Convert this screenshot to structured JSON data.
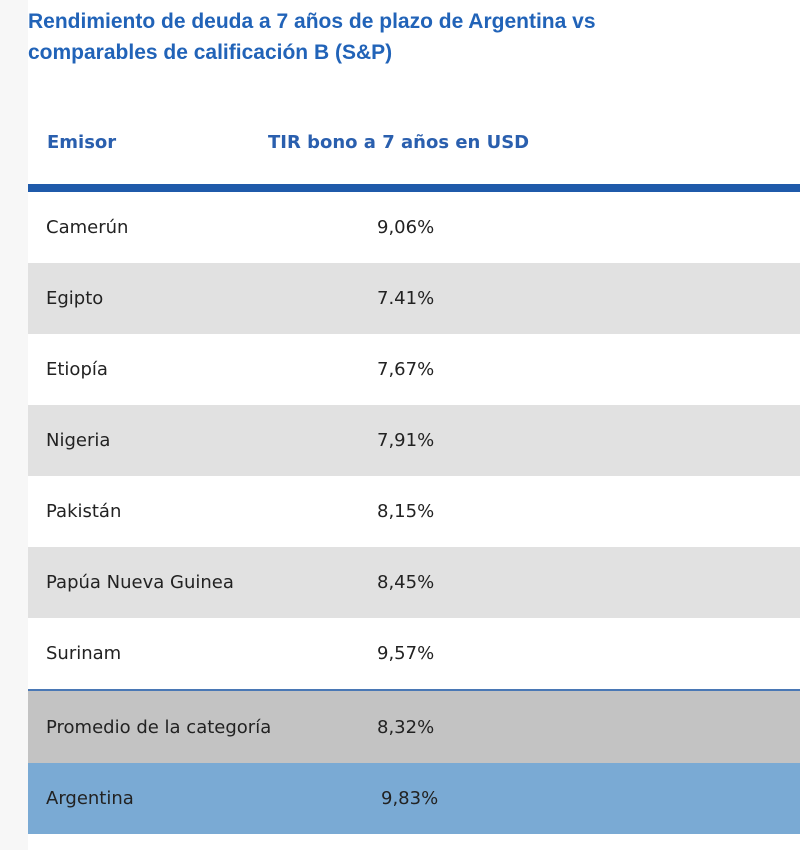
{
  "title": "Rendimiento de deuda a 7 años de plazo de Argentina vs comparables de calificación B (S&P)",
  "colors": {
    "title": "#2163b8",
    "header_text": "#2a5fae",
    "header_rule": "#1f5aaa",
    "row_alt": "#e1e1e1",
    "average_row": "#c3c3c3",
    "argentina_row": "#7aaad4"
  },
  "chart_data": {
    "type": "table",
    "title": "Rendimiento de deuda a 7 años de plazo de Argentina vs comparables de calificación B (S&P)",
    "columns": [
      "Emisor",
      "TIR bono a 7 años en USD"
    ],
    "rows": [
      {
        "emisor": "Camerún",
        "tir": "9,06%",
        "value": 9.06
      },
      {
        "emisor": "Egipto",
        "tir": "7.41%",
        "value": 7.41
      },
      {
        "emisor": "Etiopía",
        "tir": "7,67%",
        "value": 7.67
      },
      {
        "emisor": "Nigeria",
        "tir": "7,91%",
        "value": 7.91
      },
      {
        "emisor": "Pakistán",
        "tir": "8,15%",
        "value": 8.15
      },
      {
        "emisor": "Papúa Nueva Guinea",
        "tir": "8,45%",
        "value": 8.45
      },
      {
        "emisor": "Surinam",
        "tir": "9,57%",
        "value": 9.57
      },
      {
        "emisor": "Promedio de la categoría",
        "tir": "8,32%",
        "value": 8.32
      },
      {
        "emisor": "Argentina",
        "tir": "9,83%",
        "value": 9.83
      }
    ]
  }
}
